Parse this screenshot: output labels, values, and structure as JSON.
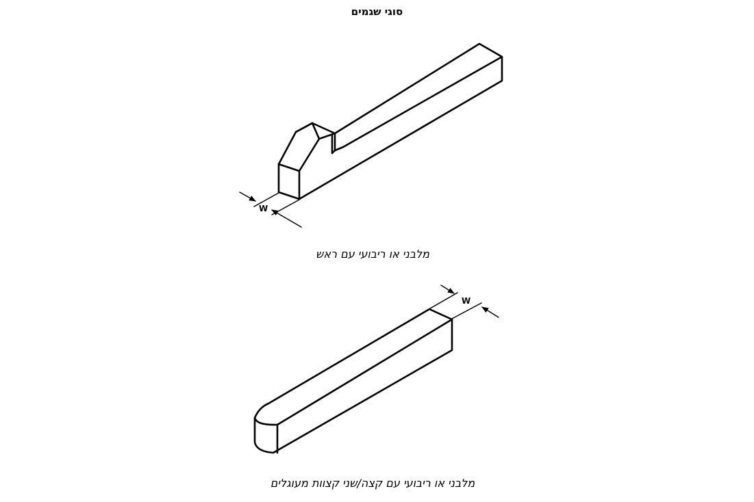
{
  "title": "סוגי שגמים",
  "figures": [
    {
      "caption": "מלבני או ריבועי עם ראש",
      "dimension_label": "W"
    },
    {
      "caption": "מלבני או ריבועי עם קצה/שני קצוות מעוגלים",
      "dimension_label": "W"
    }
  ]
}
